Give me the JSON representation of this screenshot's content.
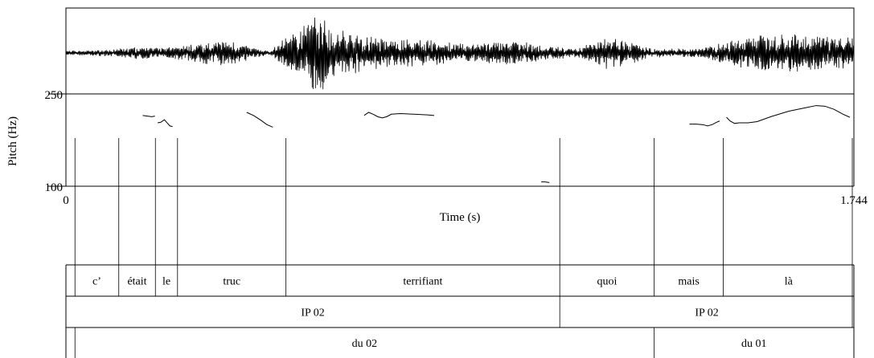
{
  "chart_data": {
    "type": "line",
    "title": "",
    "xlabel": "Time (s)",
    "ylabel": "Pitch (Hz)",
    "xlim": [
      0,
      1.744
    ],
    "ylim": [
      100,
      250
    ],
    "x_tick_labels": [
      "0",
      "1.744"
    ],
    "y_tick_labels": [
      "250",
      "100"
    ],
    "grid": false,
    "waveform": {
      "description_free": true,
      "envelope": [
        [
          0.0,
          0.05
        ],
        [
          0.1,
          0.08
        ],
        [
          0.16,
          0.15
        ],
        [
          0.22,
          0.12
        ],
        [
          0.3,
          0.25
        ],
        [
          0.36,
          0.3
        ],
        [
          0.45,
          0.05
        ],
        [
          0.56,
          0.95
        ],
        [
          0.6,
          0.55
        ],
        [
          0.7,
          0.35
        ],
        [
          0.8,
          0.3
        ],
        [
          0.9,
          0.2
        ],
        [
          0.98,
          0.3
        ],
        [
          1.05,
          0.2
        ],
        [
          1.13,
          0.1
        ],
        [
          1.2,
          0.4
        ],
        [
          1.3,
          0.1
        ],
        [
          1.4,
          0.1
        ],
        [
          1.45,
          0.25
        ],
        [
          1.55,
          0.45
        ],
        [
          1.65,
          0.45
        ],
        [
          1.744,
          0.35
        ]
      ]
    },
    "series": [
      {
        "segments": [
          [
            [
              0.17,
              215
            ],
            [
              0.18,
              214
            ],
            [
              0.19,
              213
            ],
            [
              0.197,
              214
            ]
          ],
          [
            [
              0.203,
              203
            ],
            [
              0.21,
              204
            ],
            [
              0.218,
              208
            ],
            [
              0.224,
              203
            ],
            [
              0.23,
              198
            ],
            [
              0.236,
              197
            ]
          ],
          [
            [
              0.4,
              220
            ],
            [
              0.415,
              215
            ],
            [
              0.43,
              208
            ],
            [
              0.445,
              200
            ],
            [
              0.458,
              196
            ]
          ],
          [
            [
              0.66,
              215
            ],
            [
              0.67,
              220
            ],
            [
              0.68,
              217
            ],
            [
              0.69,
              213
            ],
            [
              0.7,
              211
            ],
            [
              0.71,
              213
            ],
            [
              0.72,
              217
            ],
            [
              0.74,
              218
            ],
            [
              0.77,
              217
            ],
            [
              0.8,
              216
            ],
            [
              0.815,
              215
            ]
          ],
          [
            [
              1.052,
              107
            ],
            [
              1.06,
              107
            ],
            [
              1.07,
              106
            ]
          ],
          [
            [
              1.38,
              201
            ],
            [
              1.395,
              201
            ],
            [
              1.41,
              200
            ],
            [
              1.42,
              198
            ],
            [
              1.43,
              200
            ],
            [
              1.44,
              204
            ],
            [
              1.447,
              206
            ]
          ],
          [
            [
              1.462,
              212
            ],
            [
              1.47,
              206
            ],
            [
              1.48,
              202
            ],
            [
              1.49,
              203
            ],
            [
              1.51,
              203
            ],
            [
              1.53,
              205
            ],
            [
              1.56,
              213
            ],
            [
              1.6,
              222
            ],
            [
              1.64,
              228
            ],
            [
              1.66,
              231
            ],
            [
              1.68,
              230
            ],
            [
              1.7,
              225
            ],
            [
              1.72,
              217
            ],
            [
              1.735,
              212
            ]
          ]
        ]
      }
    ],
    "tiers": [
      {
        "intervals": [
          {
            "text": "",
            "start": 0.0,
            "end": 0.02
          },
          {
            "text": "c’",
            "start": 0.02,
            "end": 0.117
          },
          {
            "text": "était",
            "start": 0.117,
            "end": 0.198
          },
          {
            "text": "le",
            "start": 0.198,
            "end": 0.247
          },
          {
            "text": "truc",
            "start": 0.247,
            "end": 0.487
          },
          {
            "text": "terrifiant",
            "start": 0.487,
            "end": 1.093
          },
          {
            "text": "quoi",
            "start": 1.093,
            "end": 1.302
          },
          {
            "text": "mais",
            "start": 1.302,
            "end": 1.455
          },
          {
            "text": "là",
            "start": 1.455,
            "end": 1.744
          }
        ]
      },
      {
        "intervals": [
          {
            "text": "IP 02",
            "start": 0.0,
            "end": 1.093
          },
          {
            "text": "IP 02",
            "start": 1.093,
            "end": 1.744
          }
        ]
      },
      {
        "intervals": [
          {
            "text": "",
            "start": 0.0,
            "end": 0.02
          },
          {
            "text": "du 02",
            "start": 0.02,
            "end": 1.302
          },
          {
            "text": "du 01",
            "start": 1.302,
            "end": 1.744
          }
        ]
      }
    ]
  }
}
